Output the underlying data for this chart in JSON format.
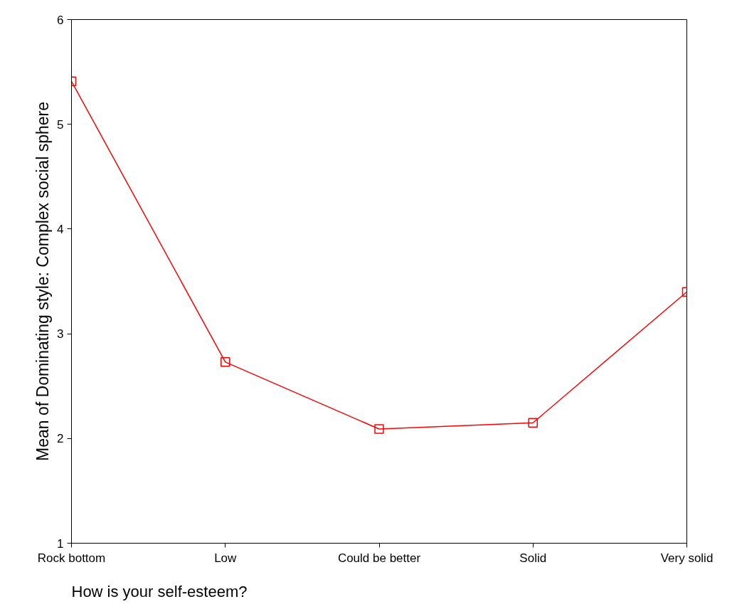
{
  "chart_data": {
    "type": "line",
    "xlabel": "How is your self-esteem?",
    "ylabel": "Mean of Dominating style: Complex social sphere",
    "categories": [
      "Rock bottom",
      "Low",
      "Could be better",
      "Solid",
      "Very solid"
    ],
    "series": [
      {
        "color": "#ff0000",
        "values": [
          5.41,
          2.73,
          2.09,
          2.15,
          3.4
        ]
      }
    ],
    "ylim": [
      1,
      6
    ],
    "yticks": [
      1,
      2,
      3,
      4,
      5,
      6
    ],
    "grid": false,
    "marker": "square",
    "line_style": "solid"
  }
}
